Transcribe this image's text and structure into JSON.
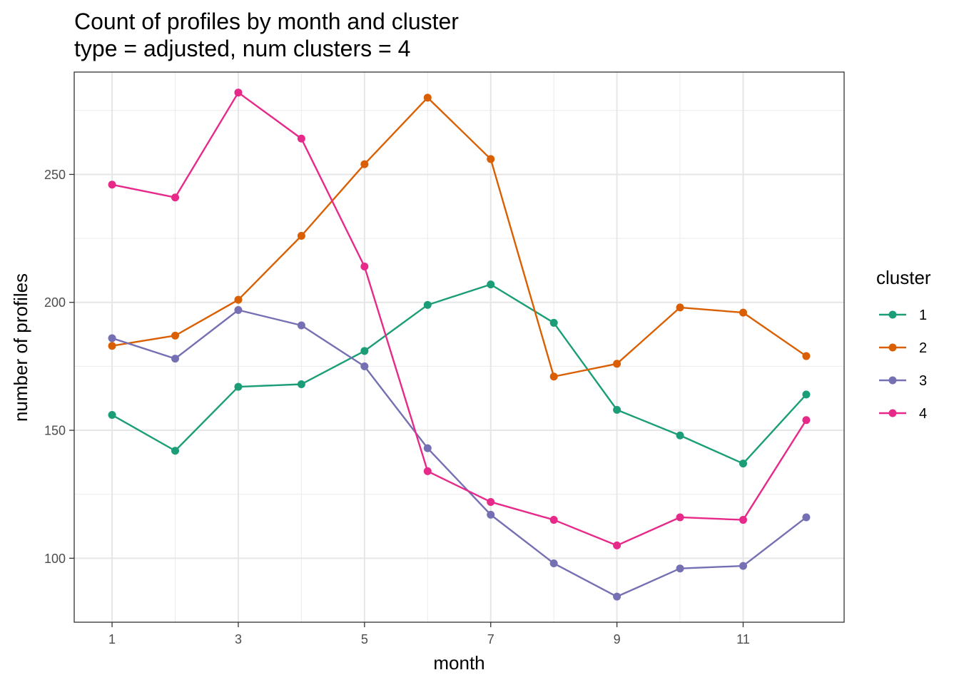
{
  "chart_data": {
    "type": "line",
    "title": "Count of profiles by month and cluster",
    "subtitle": "type = adjusted, num clusters = 4",
    "xlabel": "month",
    "ylabel": "number of profiles",
    "x": [
      1,
      2,
      3,
      4,
      5,
      6,
      7,
      8,
      9,
      10,
      11,
      12
    ],
    "x_ticks": [
      1,
      3,
      5,
      7,
      9,
      11
    ],
    "y_ticks": [
      100,
      150,
      200,
      250
    ],
    "xlim": [
      0.4,
      12.6
    ],
    "ylim": [
      75,
      290
    ],
    "grid": true,
    "legend_title": "cluster",
    "legend_position": "right",
    "series": [
      {
        "name": "1",
        "color": "#1b9e77",
        "values": [
          156,
          142,
          167,
          168,
          181,
          199,
          207,
          192,
          158,
          148,
          137,
          164
        ]
      },
      {
        "name": "2",
        "color": "#d95f02",
        "values": [
          183,
          187,
          201,
          226,
          254,
          280,
          256,
          171,
          176,
          198,
          196,
          179
        ]
      },
      {
        "name": "3",
        "color": "#7570b3",
        "values": [
          186,
          178,
          197,
          191,
          175,
          143,
          117,
          98,
          85,
          96,
          97,
          116
        ]
      },
      {
        "name": "4",
        "color": "#e7298a",
        "values": [
          246,
          241,
          282,
          264,
          214,
          134,
          122,
          115,
          105,
          116,
          115,
          154
        ]
      }
    ]
  }
}
